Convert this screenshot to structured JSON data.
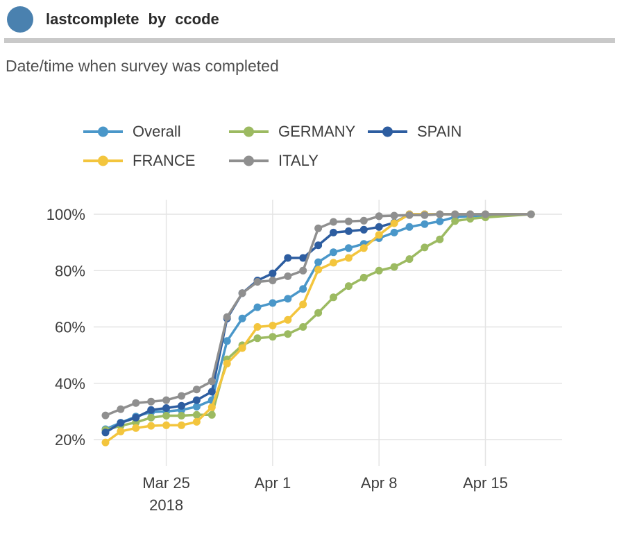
{
  "header": {
    "title_parts": {
      "0": "lastcomplete",
      "1": "by",
      "2": "ccode"
    },
    "subtitle": "Date/time when survey was completed",
    "accent_color": "#4a81af",
    "divider_color": "#c9c9c9"
  },
  "chart_data": {
    "type": "line",
    "title": "lastcomplete by ccode",
    "xlabel": "",
    "ylabel": "",
    "grid": true,
    "legend_position": "top",
    "colors": {
      "grid": "#e4e4e4",
      "tick_text": "#3d3d3d"
    },
    "y_axis": {
      "ticks": [
        {
          "value": 20,
          "label": "20%"
        },
        {
          "value": 40,
          "label": "40%"
        },
        {
          "value": 60,
          "label": "60%"
        },
        {
          "value": 80,
          "label": "80%"
        },
        {
          "value": 100,
          "label": "100%"
        }
      ],
      "range": [
        20,
        100
      ]
    },
    "x_axis": {
      "ticks": [
        {
          "day": 4,
          "label": "Mar 25",
          "sublabel": "2018"
        },
        {
          "day": 11,
          "label": "Apr 1",
          "sublabel": ""
        },
        {
          "day": 18,
          "label": "Apr 8",
          "sublabel": ""
        },
        {
          "day": 25,
          "label": "Apr 15",
          "sublabel": ""
        }
      ]
    },
    "x_dates": [
      "Mar 21",
      "Mar 22",
      "Mar 23",
      "Mar 24",
      "Mar 25",
      "Mar 26",
      "Mar 27",
      "Mar 28",
      "Mar 29",
      "Mar 30",
      "Mar 31",
      "Apr 1",
      "Apr 2",
      "Apr 3",
      "Apr 4",
      "Apr 5",
      "Apr 6",
      "Apr 7",
      "Apr 8",
      "Apr 9",
      "Apr 10",
      "Apr 11",
      "Apr 12",
      "Apr 13",
      "Apr 14",
      "Apr 15",
      "Apr 18"
    ],
    "x_days": [
      0,
      1,
      2,
      3,
      4,
      5,
      6,
      7,
      8,
      9,
      10,
      11,
      12,
      13,
      14,
      15,
      16,
      17,
      18,
      19,
      20,
      21,
      22,
      23,
      24,
      25,
      28
    ],
    "series": [
      {
        "name": "Overall",
        "color": "#4a97c9",
        "values": [
          23.7,
          26.0,
          28.2,
          29.8,
          30.0,
          30.5,
          31.7,
          34.0,
          55.0,
          63.0,
          67.0,
          68.5,
          70.0,
          73.5,
          83.0,
          86.5,
          88.0,
          89.5,
          91.5,
          93.5,
          95.5,
          96.5,
          97.5,
          99.0,
          99.3,
          99.5,
          100
        ]
      },
      {
        "name": "GERMANY",
        "color": "#9cba61",
        "values": [
          23.4,
          24.9,
          26.1,
          27.8,
          28.5,
          28.5,
          28.8,
          28.8,
          48.5,
          53.5,
          56.0,
          56.5,
          57.5,
          60.0,
          65.0,
          70.5,
          74.5,
          77.5,
          80.0,
          81.3,
          84.1,
          88.2,
          91.1,
          97.6,
          98.4,
          98.9,
          100
        ]
      },
      {
        "name": "SPAIN",
        "color": "#2d5da0",
        "values": [
          22.5,
          25.9,
          27.8,
          30.5,
          31.2,
          32.0,
          34.0,
          37.0,
          63.0,
          72.0,
          76.5,
          79.0,
          84.5,
          84.5,
          89.0,
          93.5,
          94.0,
          94.5,
          95.5,
          97.0,
          100,
          100,
          100,
          100,
          100,
          100,
          100
        ]
      },
      {
        "name": "FRANCE",
        "color": "#f3c53d",
        "values": [
          19.0,
          22.9,
          24.1,
          24.9,
          25.1,
          25.1,
          26.3,
          31.5,
          47.0,
          52.5,
          60.0,
          60.5,
          62.5,
          68.0,
          80.3,
          82.8,
          84.5,
          88.0,
          92.7,
          96.8,
          100,
          100,
          100,
          100,
          100,
          100,
          100
        ]
      },
      {
        "name": "ITALY",
        "color": "#8f8f8f",
        "values": [
          28.6,
          30.8,
          33.0,
          33.5,
          34.0,
          35.5,
          37.8,
          40.7,
          63.5,
          72.0,
          76.0,
          76.5,
          78.0,
          80.0,
          95.0,
          97.3,
          97.5,
          97.7,
          99.3,
          99.5,
          99.7,
          99.7,
          100,
          100,
          100,
          100,
          100
        ]
      }
    ]
  }
}
